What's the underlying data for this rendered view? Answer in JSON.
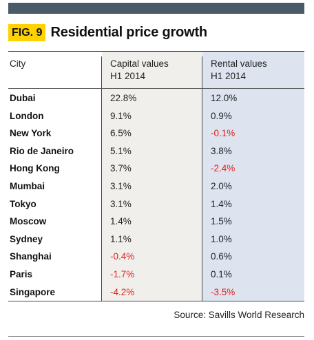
{
  "figure": {
    "tag": "FIG. 9",
    "title": "Residential price growth"
  },
  "table": {
    "headers": {
      "city": "City",
      "capital_line1": "Capital values",
      "capital_line2": "H1 2014",
      "rental_line1": "Rental values",
      "rental_line2": "H1 2014"
    },
    "rows": [
      {
        "city": "Dubai",
        "capital": "22.8%",
        "rental": "12.0%"
      },
      {
        "city": "London",
        "capital": "9.1%",
        "rental": "0.9%"
      },
      {
        "city": "New York",
        "capital": "6.5%",
        "rental": "-0.1%"
      },
      {
        "city": "Rio de Janeiro",
        "capital": "5.1%",
        "rental": "3.8%"
      },
      {
        "city": "Hong Kong",
        "capital": "3.7%",
        "rental": "-2.4%"
      },
      {
        "city": "Mumbai",
        "capital": "3.1%",
        "rental": "2.0%"
      },
      {
        "city": "Tokyo",
        "capital": "3.1%",
        "rental": "1.4%"
      },
      {
        "city": "Moscow",
        "capital": "1.4%",
        "rental": "1.5%"
      },
      {
        "city": "Sydney",
        "capital": "1.1%",
        "rental": "1.0%"
      },
      {
        "city": "Shanghai",
        "capital": "-0.4%",
        "rental": "0.6%"
      },
      {
        "city": "Paris",
        "capital": "-1.7%",
        "rental": "0.1%"
      },
      {
        "city": "Singapore",
        "capital": "-4.2%",
        "rental": "-3.5%"
      }
    ]
  },
  "source": "Source: Savills World Research",
  "colors": {
    "tag_background": "#ffd200",
    "negative_value": "#e0231c",
    "capital_column": "#f1efec",
    "rental_column": "#dde3ef",
    "top_bar": "#4a5a66"
  }
}
